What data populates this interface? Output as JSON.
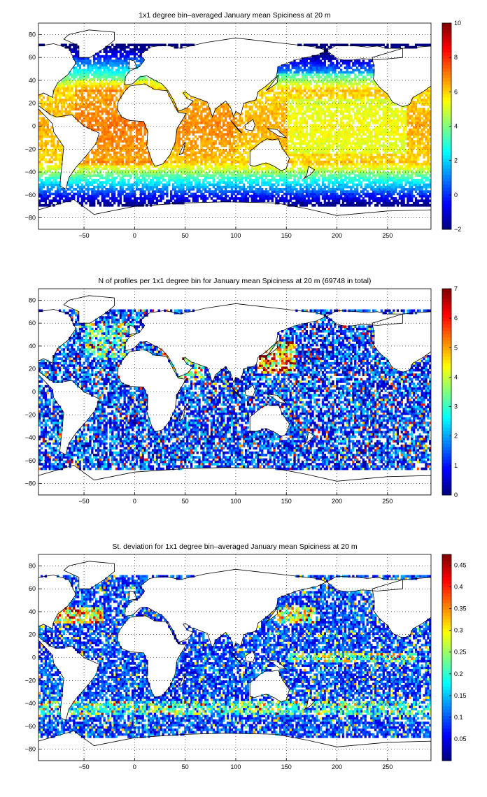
{
  "chart_data": [
    {
      "type": "heatmap",
      "title": "1x1 degree bin–averaged January mean Spiciness at 20 m",
      "xlabel": "",
      "ylabel": "",
      "xlim": [
        -95,
        293
      ],
      "ylim": [
        -90,
        90
      ],
      "xticks": [
        -50,
        0,
        50,
        100,
        150,
        200,
        250
      ],
      "yticks": [
        -80,
        -60,
        -40,
        -20,
        0,
        20,
        40,
        60,
        80
      ],
      "grid": true,
      "grid_style": "dotted",
      "colormap": "jet",
      "colorbar": {
        "range": [
          -2,
          10
        ],
        "ticks": [
          -2,
          0,
          2,
          4,
          6,
          8,
          10
        ]
      },
      "field_description": "Spiciness high (6–7) in subtropical Atlantic and Indian Ocean, ~5 in tropical Pacific, decreasing poleward to ~-1 near 60S and in the subpolar North Pacific/Atlantic."
    },
    {
      "type": "heatmap",
      "title": "N of profiles per 1x1 degree bin for January mean Spiciness at 20 m (69748 in total)",
      "xlabel": "",
      "ylabel": "",
      "xlim": [
        -95,
        293
      ],
      "ylim": [
        -90,
        90
      ],
      "xticks": [
        -50,
        0,
        50,
        100,
        150,
        200,
        250
      ],
      "yticks": [
        -80,
        -60,
        -40,
        -20,
        0,
        20,
        40,
        60,
        80
      ],
      "grid": true,
      "grid_style": "dotted",
      "colormap": "jet",
      "colorbar": {
        "range": [
          0,
          7
        ],
        "ticks": [
          0,
          1,
          2,
          3,
          4,
          5,
          6,
          7
        ]
      },
      "total_profiles": 69748,
      "field_description": "Profile counts highest (7+) around Japan/Kuroshio, North Atlantic, Red Sea/Arabian Sea; sparse 1–3 elsewhere."
    },
    {
      "type": "heatmap",
      "title": "St. deviation for 1x1 degree bin–averaged January mean Spiciness at 20 m",
      "xlabel": "",
      "ylabel": "",
      "xlim": [
        -95,
        293
      ],
      "ylim": [
        -90,
        90
      ],
      "xticks": [
        -50,
        0,
        50,
        100,
        150,
        200,
        250
      ],
      "yticks": [
        -80,
        -60,
        -40,
        -20,
        0,
        20,
        40,
        60,
        80
      ],
      "grid": true,
      "grid_style": "dotted",
      "colormap": "jet",
      "colorbar": {
        "range": [
          0,
          0.475
        ],
        "ticks": [
          0.05,
          0.1,
          0.15,
          0.2,
          0.25,
          0.3,
          0.35,
          0.4,
          0.45
        ]
      },
      "field_description": "Standard deviation mostly below 0.1, elevated (0.3–0.45) in the Gulf Stream, Kuroshio, Antarctic Circumpolar Current front and equatorial Pacific."
    }
  ]
}
